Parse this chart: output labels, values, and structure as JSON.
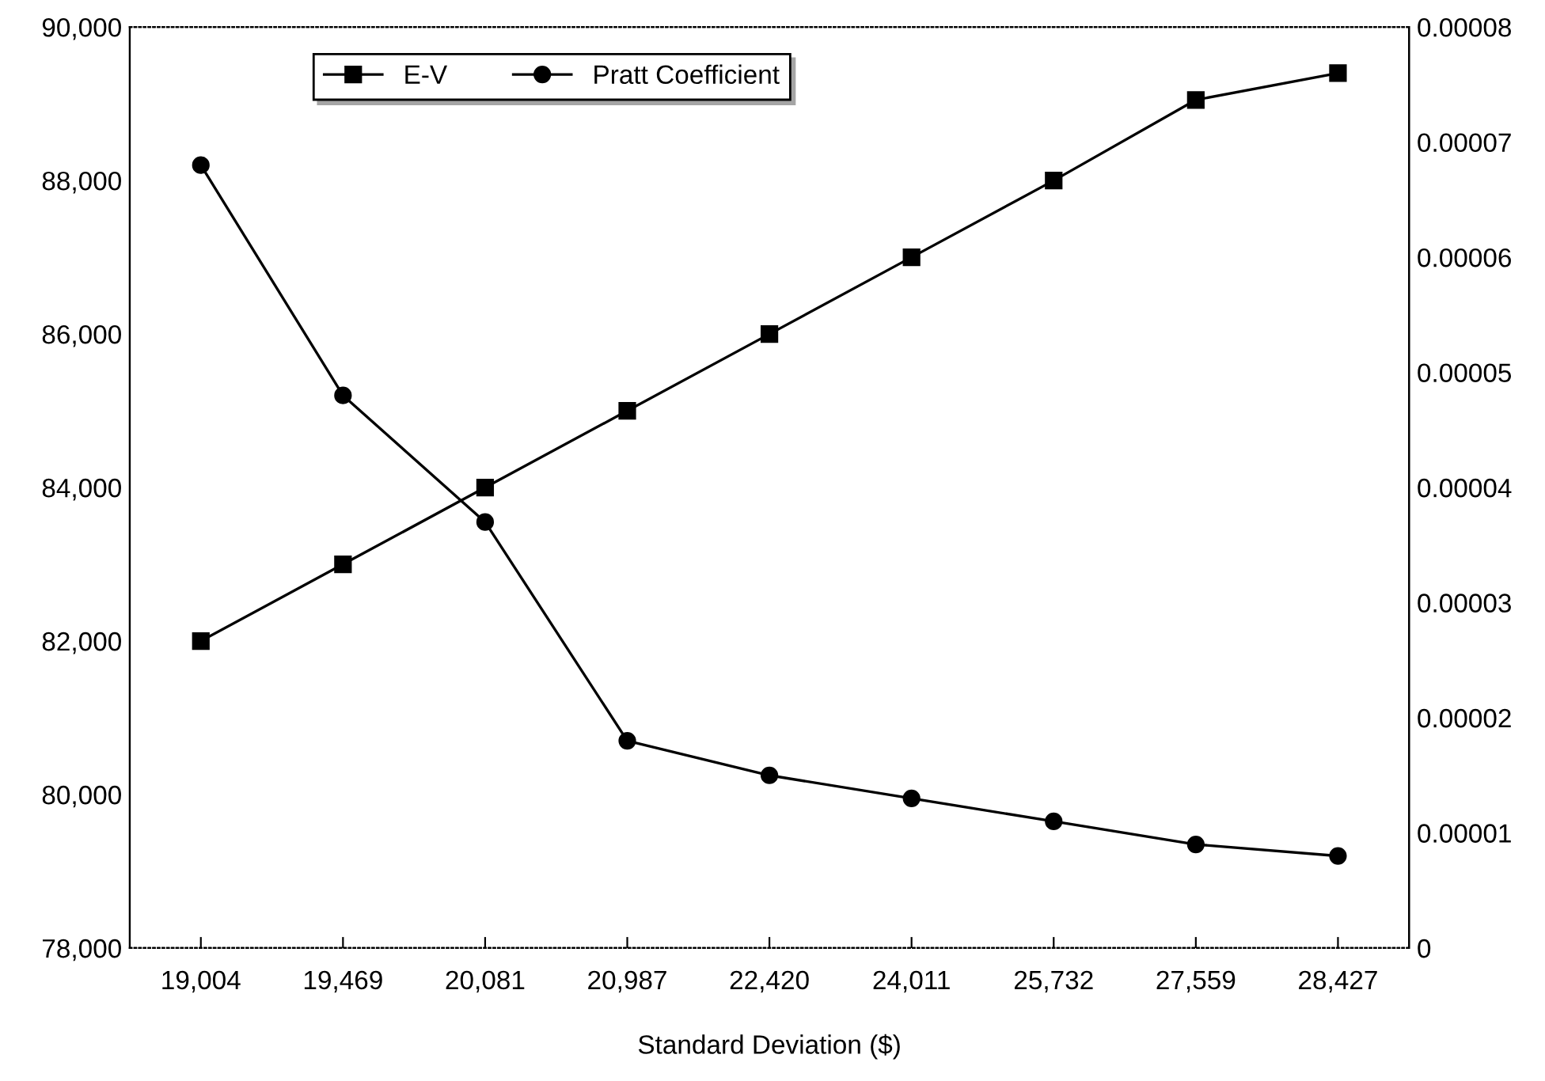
{
  "chart_data": {
    "type": "line",
    "xlabel": "Standard Deviation ($)",
    "categories": [
      "19,004",
      "19,469",
      "20,081",
      "20,987",
      "22,420",
      "24,011",
      "25,732",
      "27,559",
      "28,427"
    ],
    "series": [
      {
        "name": "E-V",
        "color": "#000000",
        "marker": "square",
        "values": [
          82000,
          83000,
          84000,
          85000,
          86000,
          87000,
          88000,
          89050,
          89400
        ]
      },
      {
        "name": "Pratt Coefficient",
        "color": "#000000",
        "marker": "circle",
        "axis": "y2",
        "values": [
          6.8e-05,
          4.8e-05,
          3.7e-05,
          1.8e-05,
          1.5e-05,
          1.3e-05,
          1.1e-05,
          9e-06,
          8e-06
        ]
      }
    ],
    "ylim": [
      78000,
      90000
    ],
    "yticks": [
      {
        "value": 78000,
        "label": "78,000"
      },
      {
        "value": 80000,
        "label": "80,000"
      },
      {
        "value": 82000,
        "label": "82,000"
      },
      {
        "value": 84000,
        "label": "84,000"
      },
      {
        "value": 86000,
        "label": "86,000"
      },
      {
        "value": 88000,
        "label": "88,000"
      },
      {
        "value": 90000,
        "label": "90,000"
      }
    ],
    "y2lim": [
      0,
      8e-05
    ],
    "y2ticks": [
      0,
      {
        "value": 1e-05,
        "label": "0.00001"
      },
      {
        "value": 2e-05,
        "label": "0.00002"
      },
      {
        "value": 3e-05,
        "label": "0.00003"
      },
      {
        "value": 4e-05,
        "label": "0.00004"
      },
      {
        "value": 5e-05,
        "label": "0.00005"
      },
      {
        "value": 6e-05,
        "label": "0.00006"
      },
      {
        "value": 7e-05,
        "label": "0.00007"
      },
      {
        "value": 8e-05,
        "label": "0.00008"
      }
    ],
    "legend": "top",
    "grid": false,
    "line_style": "solid"
  }
}
